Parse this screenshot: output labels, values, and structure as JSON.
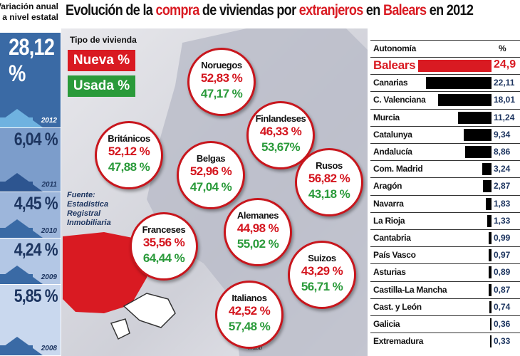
{
  "left_panel": {
    "header_line1": "Variación anual",
    "header_line2": "a nivel estatal",
    "years": [
      {
        "year": "2012",
        "value": "28,12 %"
      },
      {
        "year": "2011",
        "value": "6,04 %"
      },
      {
        "year": "2010",
        "value": "4,45 %"
      },
      {
        "year": "2009",
        "value": "4,24 %"
      },
      {
        "year": "2008",
        "value": "5,85 %"
      }
    ]
  },
  "title": {
    "p1": "Evolución de la ",
    "p2": "compra",
    "p3": " de viviendas por ",
    "p4": "extranjeros",
    "p5": " en ",
    "p6": "Balears",
    "p7": " en 2012"
  },
  "legend": {
    "title": "Tipo de vivienda",
    "nueva": "Nueva %",
    "usada": "Usada %"
  },
  "source": {
    "l1": "Fuente:",
    "l2": "Estadística",
    "l3": "Registral",
    "l4": "Inmobiliaria"
  },
  "credit": "mabb",
  "colors": {
    "red": "#d91a22",
    "green": "#2a9a3a",
    "blue": "#3a6aa5"
  },
  "bubbles": [
    {
      "name": "Noruegos",
      "nueva": "52,83 %",
      "usada": "47,17 %"
    },
    {
      "name": "Finlandeses",
      "nueva": "46,33 %",
      "usada": "53,67%"
    },
    {
      "name": "Británicos",
      "nueva": "52,12 %",
      "usada": "47,88 %"
    },
    {
      "name": "Belgas",
      "nueva": "52,96 %",
      "usada": "47,04 %"
    },
    {
      "name": "Rusos",
      "nueva": "56,82 %",
      "usada": "43,18 %"
    },
    {
      "name": "Alemanes",
      "nueva": "44,98 %",
      "usada": "55,02 %"
    },
    {
      "name": "Franceses",
      "nueva": "35,56 %",
      "usada": "64,44 %"
    },
    {
      "name": "Suizos",
      "nueva": "43,29 %",
      "usada": "56,71 %"
    },
    {
      "name": "Italianos",
      "nueva": "42,52 %",
      "usada": "57,48 %"
    }
  ],
  "chart_data": {
    "type": "bar",
    "title": "Autonomía",
    "value_header": "%",
    "categories": [
      "Balears",
      "Canarias",
      "C. Valenciana",
      "Murcia",
      "Catalunya",
      "Andalucía",
      "Com. Madrid",
      "Aragón",
      "Navarra",
      "La Rioja",
      "Cantabria",
      "País Vasco",
      "Asturias",
      "Castilla-La Mancha",
      "Cast. y León",
      "Galicia",
      "Extremadura"
    ],
    "values": [
      24.9,
      22.11,
      18.01,
      11.24,
      9.34,
      8.86,
      3.24,
      2.87,
      1.83,
      1.33,
      0.99,
      0.97,
      0.89,
      0.87,
      0.74,
      0.36,
      0.33
    ],
    "labels": [
      "24,9",
      "22,11",
      "18,01",
      "11,24",
      "9,34",
      "8,86",
      "3,24",
      "2,87",
      "1,83",
      "1,33",
      "0,99",
      "0,97",
      "0,89",
      "0,87",
      "0,74",
      "0,36",
      "0,33"
    ],
    "highlight": "Balears"
  }
}
